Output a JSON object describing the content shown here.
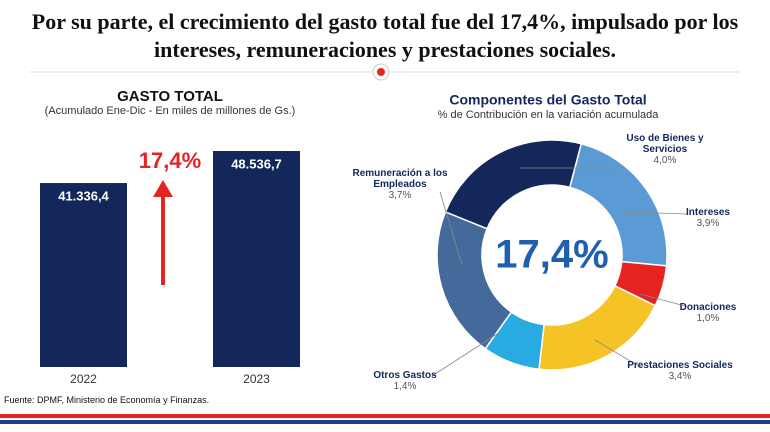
{
  "title": "Por su parte, el crecimiento del gasto total fue del 17,4%,  impulsado por los intereses, remuneraciones y prestaciones sociales.",
  "source": "Fuente: DPMF, Ministerio de Economía y Finanzas.",
  "chart_data": [
    {
      "type": "bar",
      "title": "GASTO TOTAL",
      "subtitle": "(Acumulado Ene-Dic  - En miles de millones de Gs.)",
      "categories": [
        "2022",
        "2023"
      ],
      "values": [
        41336.4,
        48536.7
      ],
      "value_labels": [
        "41.336,4",
        "48.536,7"
      ],
      "color": "#13275b",
      "annotation": "17,4%"
    },
    {
      "type": "pie",
      "title": "Componentes del Gasto Total",
      "subtitle": "% de Contribución en la variación acumulada",
      "categories": [
        "Uso de Bienes y Servicios",
        "Intereses",
        "Donaciones",
        "Prestaciones Sociales",
        "Otros Gastos",
        "Remuneración a los Empleados"
      ],
      "values": [
        4.0,
        3.9,
        1.0,
        3.4,
        1.4,
        3.7
      ],
      "value_labels": [
        "4,0%",
        "3,9%",
        "1,0%",
        "3,4%",
        "1,4%",
        "3,7%"
      ],
      "colors": [
        "#13275b",
        "#5b9bd5",
        "#e52421",
        "#f6c326",
        "#29aae1",
        "#44699b"
      ],
      "center_label": "17,4%"
    }
  ]
}
